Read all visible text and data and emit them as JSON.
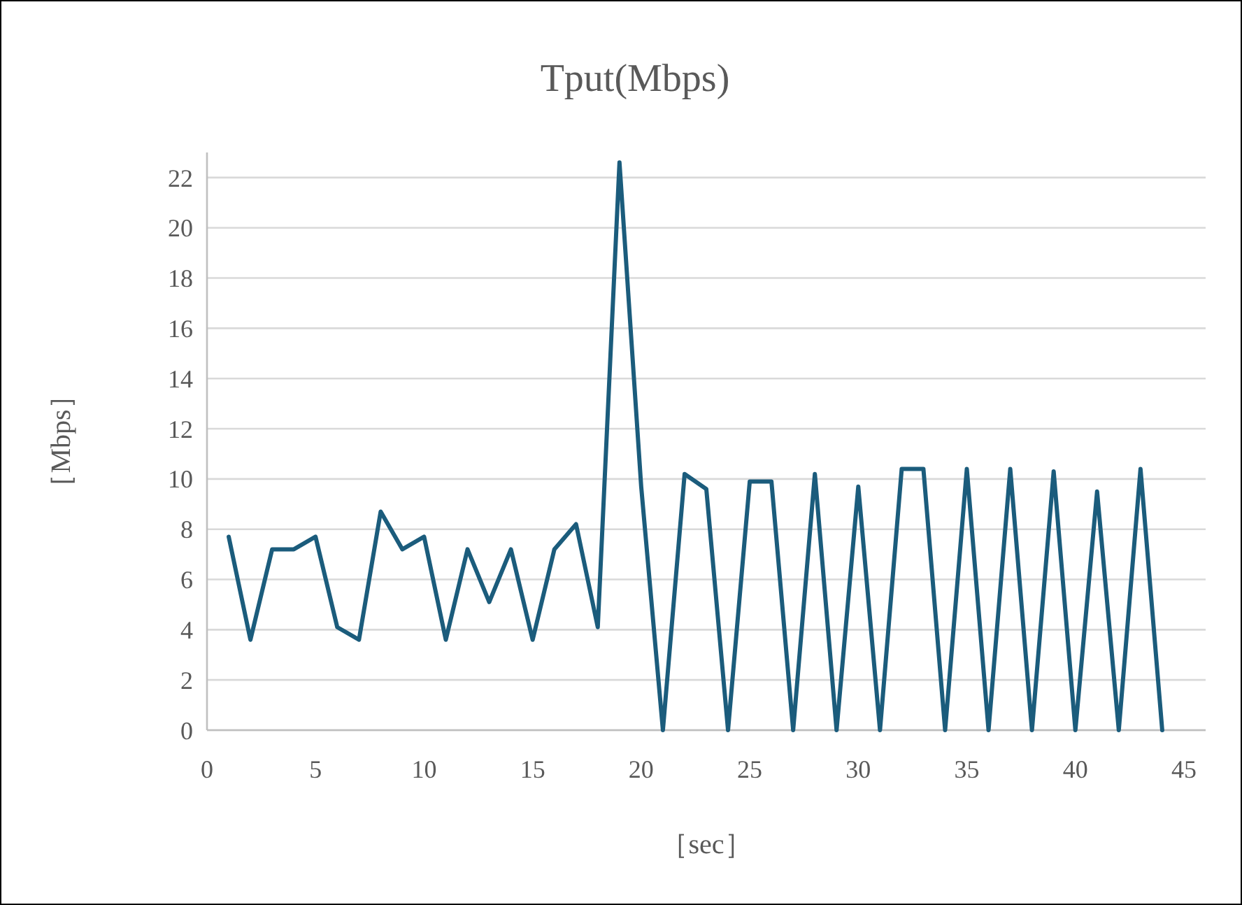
{
  "chart_data": {
    "type": "line",
    "title": "Tput(Mbps)",
    "xlabel": "［sec］",
    "ylabel": "［Mbps］",
    "x": [
      1,
      2,
      3,
      4,
      5,
      6,
      7,
      8,
      9,
      10,
      11,
      12,
      13,
      14,
      15,
      16,
      17,
      18,
      19,
      20,
      21,
      22,
      23,
      24,
      25,
      26,
      27,
      28,
      29,
      30,
      31,
      32,
      33,
      34,
      35,
      36,
      37,
      38,
      39,
      40,
      41,
      42,
      43,
      44
    ],
    "series": [
      {
        "color": "#1b5c7c",
        "values": [
          7.7,
          3.6,
          7.2,
          7.2,
          7.7,
          4.1,
          3.6,
          8.7,
          7.2,
          7.7,
          3.6,
          7.2,
          5.1,
          7.2,
          3.6,
          7.2,
          8.2,
          4.1,
          22.6,
          9.7,
          0,
          10.2,
          9.6,
          0,
          9.9,
          9.9,
          0,
          10.2,
          0,
          9.7,
          0,
          10.4,
          10.4,
          0,
          10.4,
          0,
          10.4,
          0,
          10.3,
          0,
          9.5,
          0,
          10.4,
          0
        ]
      }
    ],
    "xlim": [
      0,
      46
    ],
    "xticks": [
      0,
      5,
      10,
      15,
      20,
      25,
      30,
      35,
      40,
      45
    ],
    "ylim": [
      0,
      23
    ],
    "yticks": [
      0,
      2,
      4,
      6,
      8,
      10,
      12,
      14,
      16,
      18,
      20,
      22
    ],
    "grid": "y",
    "marker": "none",
    "line_style": "solid"
  }
}
